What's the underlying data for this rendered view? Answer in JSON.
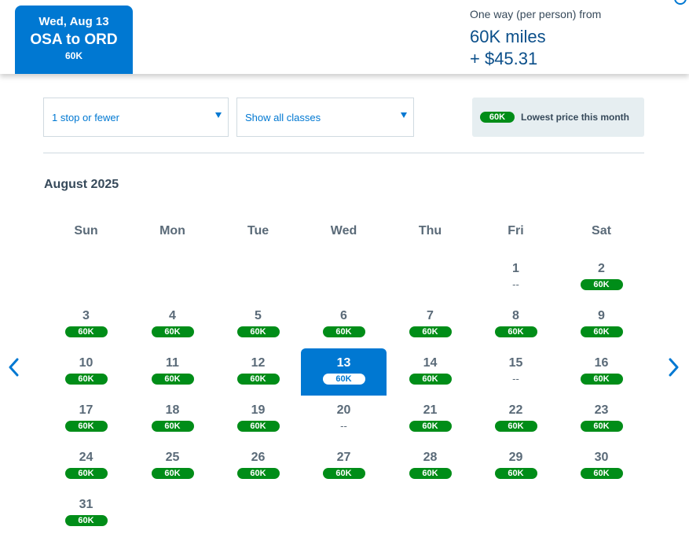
{
  "header": {
    "tab_date": "Wed, Aug 13",
    "tab_route": "OSA to ORD",
    "tab_price": "60K",
    "fare_label": "One way (per person) from",
    "fare_miles": "60K miles",
    "fare_tax": "+ $45.31"
  },
  "filters": {
    "stops": "1 stop or fewer",
    "classes": "Show all classes"
  },
  "legend": {
    "pill": "60K",
    "text": "Lowest price this month"
  },
  "calendar": {
    "month_title": "August 2025",
    "weekdays": [
      "Sun",
      "Mon",
      "Tue",
      "Wed",
      "Thu",
      "Fri",
      "Sat"
    ],
    "first_weekday_index": 5,
    "selected_day": 13,
    "nav_prev_icon": "chevron-left-icon",
    "nav_next_icon": "chevron-right-icon",
    "days": [
      {
        "n": "1",
        "p": "--"
      },
      {
        "n": "2",
        "p": "60K"
      },
      {
        "n": "3",
        "p": "60K"
      },
      {
        "n": "4",
        "p": "60K"
      },
      {
        "n": "5",
        "p": "60K"
      },
      {
        "n": "6",
        "p": "60K"
      },
      {
        "n": "7",
        "p": "60K"
      },
      {
        "n": "8",
        "p": "60K"
      },
      {
        "n": "9",
        "p": "60K"
      },
      {
        "n": "10",
        "p": "60K"
      },
      {
        "n": "11",
        "p": "60K"
      },
      {
        "n": "12",
        "p": "60K"
      },
      {
        "n": "13",
        "p": "60K"
      },
      {
        "n": "14",
        "p": "60K"
      },
      {
        "n": "15",
        "p": "--"
      },
      {
        "n": "16",
        "p": "60K"
      },
      {
        "n": "17",
        "p": "60K"
      },
      {
        "n": "18",
        "p": "60K"
      },
      {
        "n": "19",
        "p": "60K"
      },
      {
        "n": "20",
        "p": "--"
      },
      {
        "n": "21",
        "p": "60K"
      },
      {
        "n": "22",
        "p": "60K"
      },
      {
        "n": "23",
        "p": "60K"
      },
      {
        "n": "24",
        "p": "60K"
      },
      {
        "n": "25",
        "p": "60K"
      },
      {
        "n": "26",
        "p": "60K"
      },
      {
        "n": "27",
        "p": "60K"
      },
      {
        "n": "28",
        "p": "60K"
      },
      {
        "n": "29",
        "p": "60K"
      },
      {
        "n": "30",
        "p": "60K"
      },
      {
        "n": "31",
        "p": "60K"
      }
    ]
  },
  "colors": {
    "brand_blue": "#0078d2",
    "price_green": "#008d18",
    "legend_bg": "#e6eef1"
  }
}
